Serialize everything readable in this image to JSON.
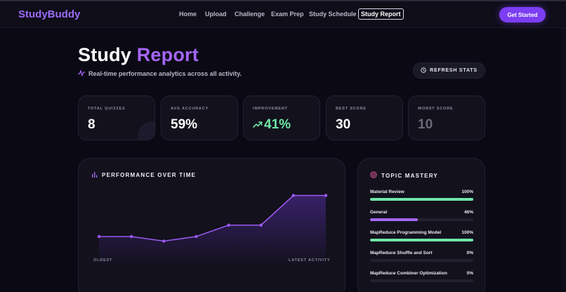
{
  "brand": {
    "name": "StudyBuddy"
  },
  "nav": {
    "items": [
      {
        "label": "Home"
      },
      {
        "label": "Upload"
      },
      {
        "label": "Challenge"
      },
      {
        "label": "Exam Prep"
      },
      {
        "label": "Study Schedule"
      },
      {
        "label": "Study Report",
        "active": true
      }
    ],
    "cta_label": "Get Started"
  },
  "page": {
    "title_main": "Study",
    "title_accent": "Report",
    "subtitle": "Real-time performance analytics across all activity.",
    "refresh_label": "REFRESH STATS"
  },
  "stats": [
    {
      "label": "TOTAL QUIZZES",
      "value": "8"
    },
    {
      "label": "AVG ACCURACY",
      "value": "59%"
    },
    {
      "label": "IMPROVEMENT",
      "value": "41%",
      "icon": "trending-up-icon"
    },
    {
      "label": "BEST SCORE",
      "value": "30"
    },
    {
      "label": "WORST SCORE",
      "value": "10"
    }
  ],
  "performance": {
    "title": "PERFORMANCE OVER TIME",
    "x_start_label": "OLDEST",
    "x_end_label": "LATEST ACTIVITY"
  },
  "chart_data": {
    "type": "area",
    "title": "PERFORMANCE OVER TIME",
    "x": [
      1,
      2,
      3,
      4,
      5,
      6,
      7,
      8
    ],
    "values": [
      12,
      12,
      10,
      12,
      17,
      17,
      30,
      30
    ],
    "ylim": [
      0,
      40
    ],
    "xlabel": "",
    "ylabel": "",
    "grid": false,
    "line_color": "#9b59f0"
  },
  "mastery": {
    "title": "TOPIC MASTERY",
    "topics": [
      {
        "name": "Material Review",
        "pct_label": "100%",
        "pct": 100,
        "color": "#6ee7a8"
      },
      {
        "name": "General",
        "pct_label": "46%",
        "pct": 46,
        "color": "#a466f7"
      },
      {
        "name": "MapReduce Programming Model",
        "pct_label": "100%",
        "pct": 100,
        "color": "#6ee7a8"
      },
      {
        "name": "MapReduce Shuffle and Sort",
        "pct_label": "0%",
        "pct": 0,
        "color": "#a466f7"
      },
      {
        "name": "MapReduce Combiner Optimization",
        "pct_label": "0%",
        "pct": 0,
        "color": "#a466f7"
      }
    ]
  },
  "colors": {
    "accent": "#a466f7",
    "cta": "#7b3ef2",
    "success": "#6ee7a8",
    "background": "#0b0a14"
  }
}
